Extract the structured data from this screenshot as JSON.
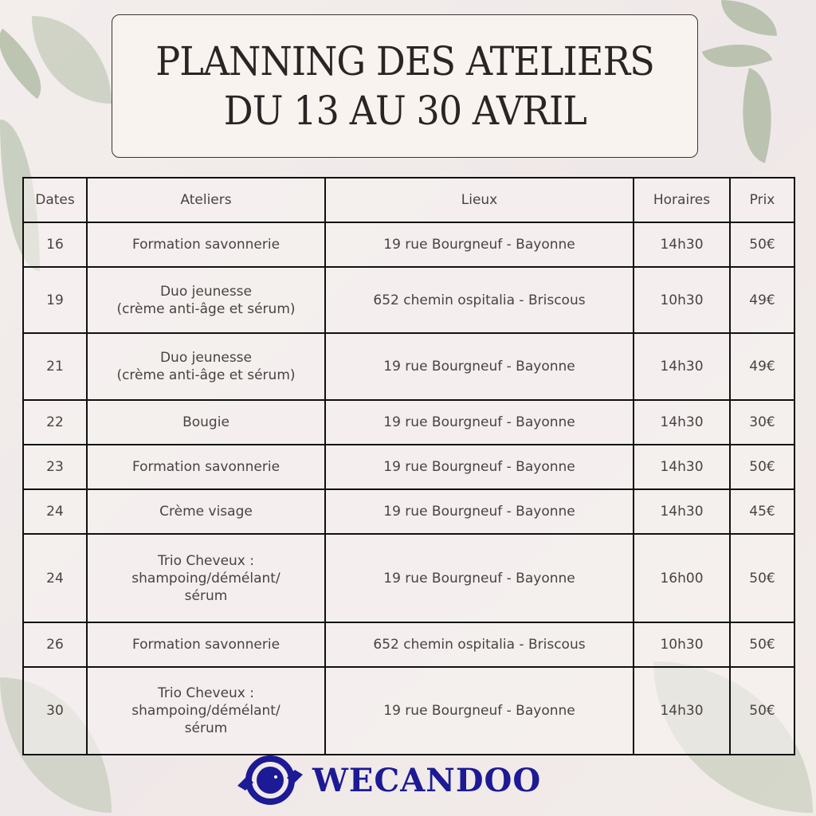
{
  "title": {
    "line1": "PLANNING DES ATELIERS",
    "line2": "DU 13 AU 30 AVRIL"
  },
  "table": {
    "headers": [
      "Dates",
      "Ateliers",
      "Lieux",
      "Horaires",
      "Prix"
    ],
    "rows": [
      {
        "date": "16",
        "atelier": [
          "Formation savonnerie"
        ],
        "lieu": "19 rue Bourgneuf - Bayonne",
        "horaire": "14h30",
        "prix": "50€"
      },
      {
        "date": "19",
        "atelier": [
          "Duo jeunesse",
          "(crème anti-âge et sérum)"
        ],
        "lieu": "652 chemin ospitalia - Briscous",
        "horaire": "10h30",
        "prix": "49€"
      },
      {
        "date": "21",
        "atelier": [
          "Duo jeunesse",
          "(crème anti-âge et sérum)"
        ],
        "lieu": "19 rue Bourgneuf - Bayonne",
        "horaire": "14h30",
        "prix": "49€"
      },
      {
        "date": "22",
        "atelier": [
          "Bougie"
        ],
        "lieu": "19 rue Bourgneuf - Bayonne",
        "horaire": "14h30",
        "prix": "30€"
      },
      {
        "date": "23",
        "atelier": [
          "Formation savonnerie"
        ],
        "lieu": "19 rue Bourgneuf - Bayonne",
        "horaire": "14h30",
        "prix": "50€"
      },
      {
        "date": "24",
        "atelier": [
          "Crème visage"
        ],
        "lieu": "19 rue Bourgneuf - Bayonne",
        "horaire": "14h30",
        "prix": "45€"
      },
      {
        "date": "24",
        "atelier": [
          "Trio Cheveux :",
          "shampoing/démélant/",
          "sérum"
        ],
        "lieu": "19 rue Bourgneuf - Bayonne",
        "horaire": "16h00",
        "prix": "50€"
      },
      {
        "date": "26",
        "atelier": [
          "Formation savonnerie"
        ],
        "lieu": "652 chemin ospitalia - Briscous",
        "horaire": "10h30",
        "prix": "50€"
      },
      {
        "date": "30",
        "atelier": [
          "Trio Cheveux :",
          "shampoing/démélant/",
          "sérum"
        ],
        "lieu": "19 rue Bourgneuf - Bayonne",
        "horaire": "14h30",
        "prix": "50€"
      }
    ]
  },
  "logo": {
    "text": "WECANDOO",
    "color": "#1c1a94"
  },
  "colors": {
    "leaf": "#8fa481",
    "border": "#111111"
  }
}
